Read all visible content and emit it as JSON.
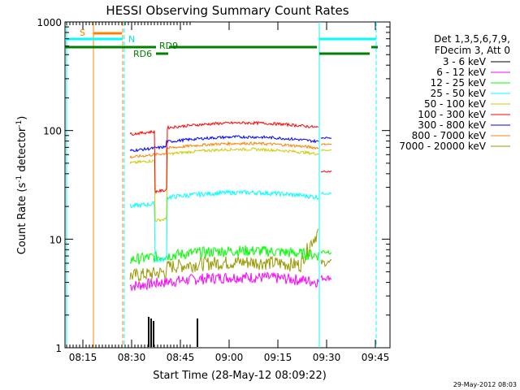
{
  "chart_data": {
    "type": "line",
    "title": "HESSI Observing Summary Count Rates",
    "xlabel": "Start Time (28-May-12 08:09:22)",
    "ylabel_main": "Count Rate (s",
    "ylabel_sup1": "-1",
    "ylabel_mid": " detector",
    "ylabel_sup2": "-1",
    "ylabel_end": ")",
    "y_scale": "log",
    "ylim": [
      1,
      1000
    ],
    "x_ticks": [
      "08:15",
      "08:30",
      "08:45",
      "09:00",
      "09:15",
      "09:30",
      "09:45"
    ],
    "y_ticks": [
      "1",
      "10",
      "100",
      "1000"
    ],
    "legend_header": [
      "Det 1,3,5,6,7,9,",
      "FDecim 3, Att 0"
    ],
    "series": [
      {
        "name": "3 - 6 keV",
        "color": "#000000"
      },
      {
        "name": "6 - 12 keV",
        "color": "#ff00ff"
      },
      {
        "name": "12 - 25 keV",
        "color": "#00ff00"
      },
      {
        "name": "25 - 50 keV",
        "color": "#00ffff"
      },
      {
        "name": "50 - 100 keV",
        "color": "#cccc00"
      },
      {
        "name": "100 - 300 keV",
        "color": "#ff0000"
      },
      {
        "name": "300 - 800 keV",
        "color": "#0000ff"
      },
      {
        "name": "800 - 7000 keV",
        "color": "#ff8000"
      },
      {
        "name": "7000 - 20000 keV",
        "color": "#999900"
      }
    ],
    "annotations": [
      {
        "label": "S",
        "color": "#ff8000"
      },
      {
        "label": "N",
        "color": "#00ffff"
      },
      {
        "label": "RD9",
        "color": "#008000"
      },
      {
        "label": "RD6",
        "color": "#008000"
      }
    ],
    "timestamp": "29-May-2012 08:03"
  }
}
